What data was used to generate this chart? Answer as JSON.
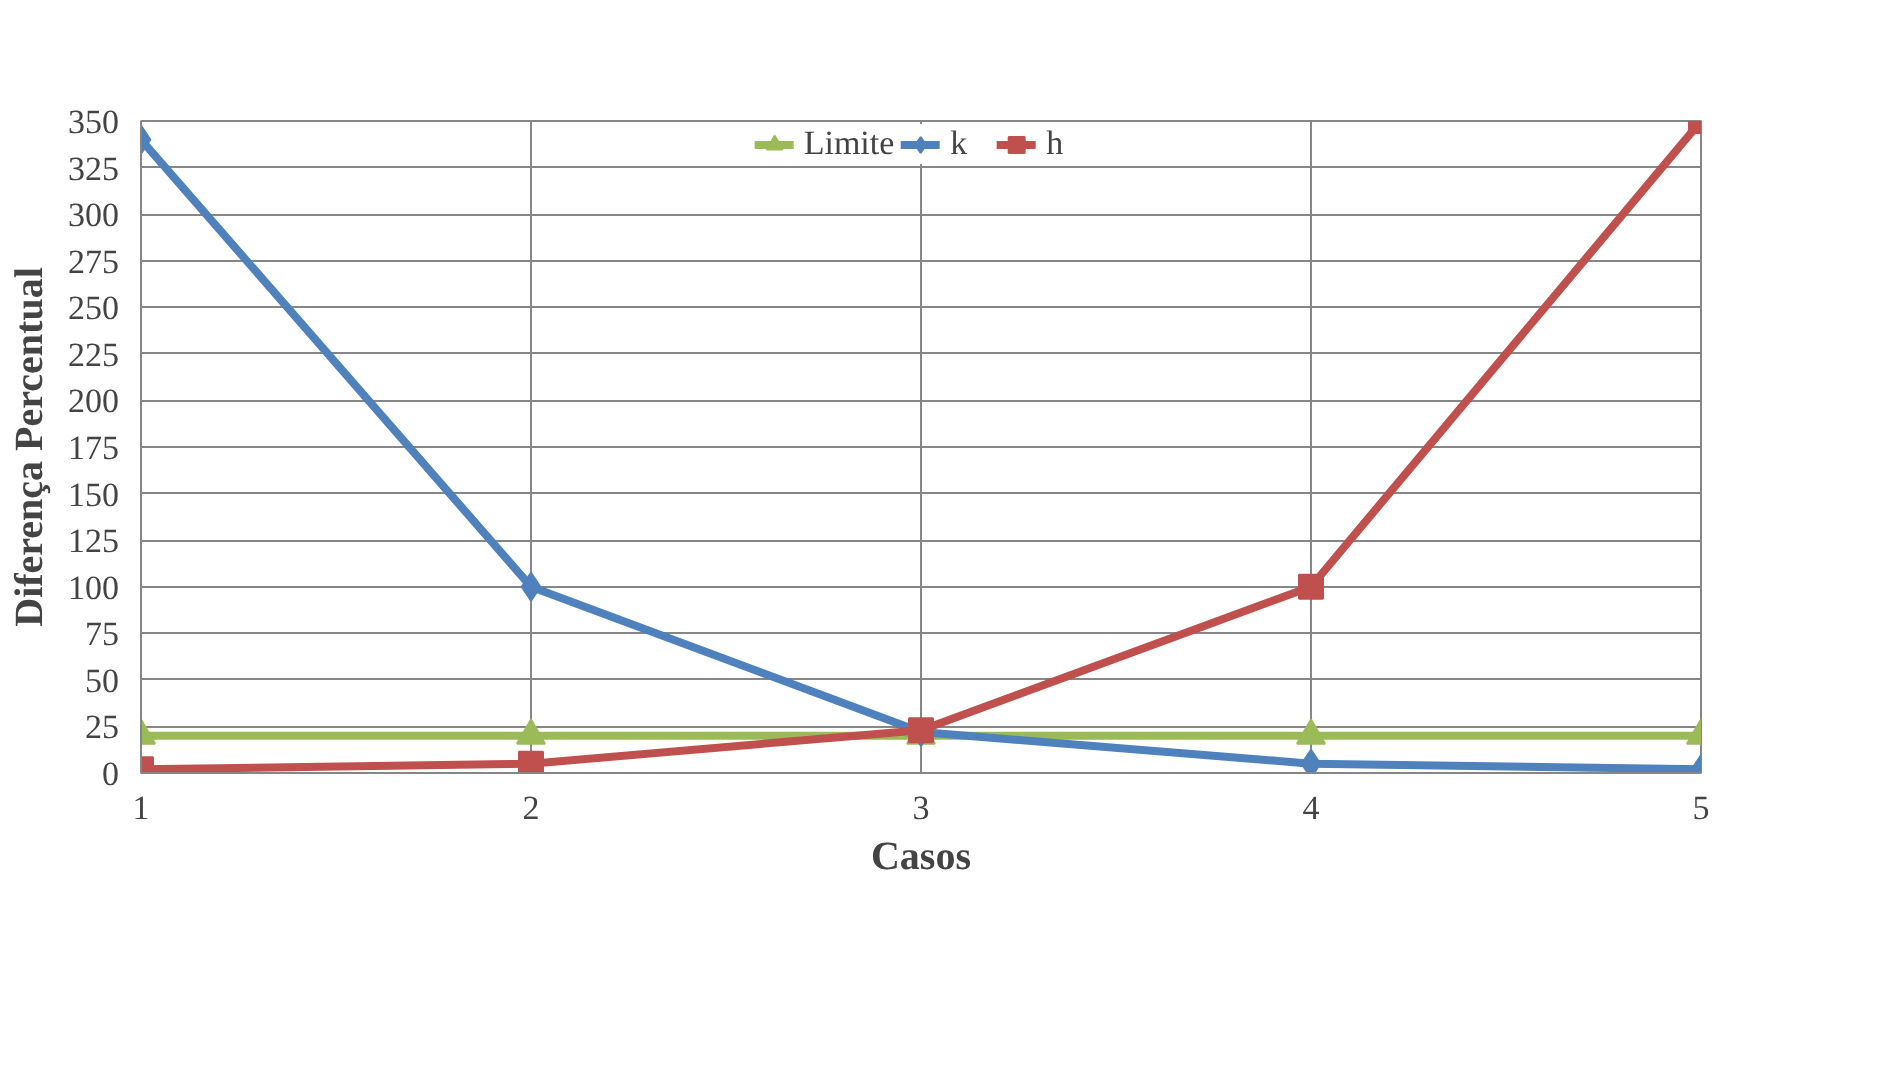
{
  "chart_data": {
    "type": "line",
    "xlabel": "Casos",
    "ylabel": "Diferença Percentual",
    "x": [
      1,
      2,
      3,
      4,
      5
    ],
    "series": [
      {
        "name": "Limite",
        "color": "#9bbb59",
        "marker": "triangle",
        "values": [
          20,
          20,
          20,
          20,
          20
        ]
      },
      {
        "name": "k",
        "color": "#4f81bd",
        "marker": "diamond",
        "values": [
          340,
          100,
          22,
          5,
          2
        ]
      },
      {
        "name": "h",
        "color": "#c0504d",
        "marker": "square",
        "values": [
          2,
          5,
          23,
          100,
          350
        ]
      }
    ],
    "xlim": [
      1,
      5
    ],
    "xticks": [
      1,
      2,
      3,
      4,
      5
    ],
    "ylim": [
      0,
      350
    ],
    "yticks": [
      0,
      25,
      50,
      75,
      100,
      125,
      150,
      175,
      200,
      225,
      250,
      275,
      300,
      325,
      350
    ],
    "grid": true,
    "legend": "top",
    "line_style": "solid"
  }
}
